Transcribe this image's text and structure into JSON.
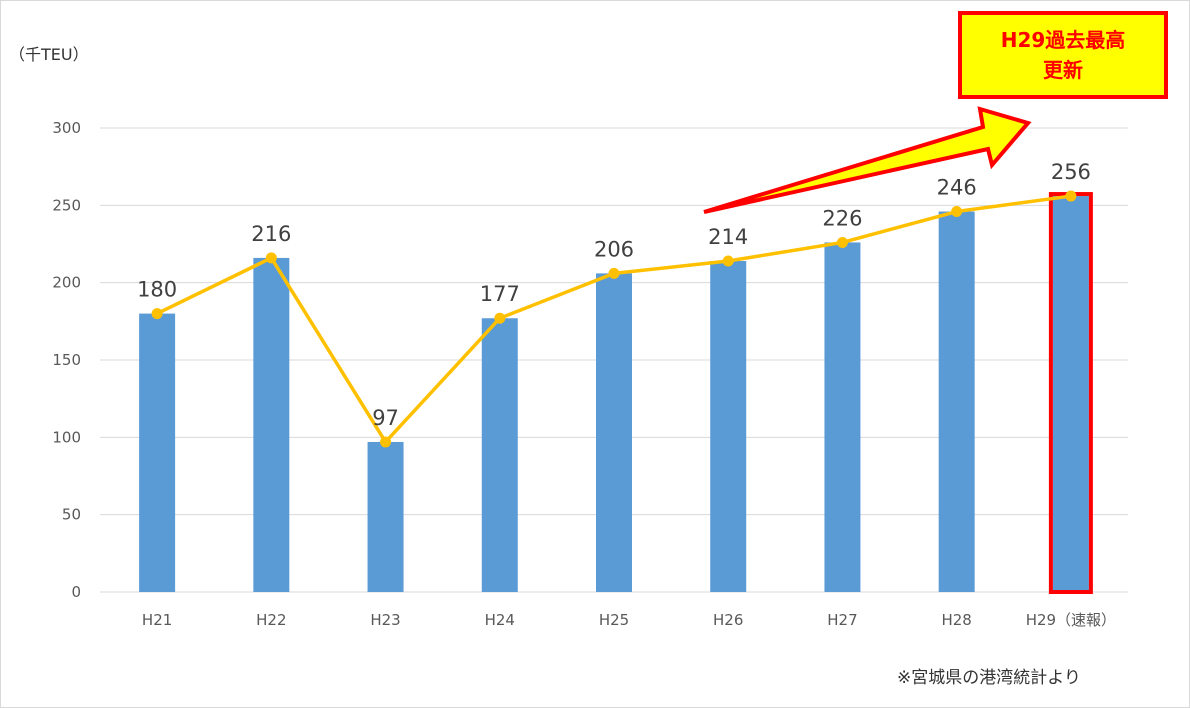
{
  "chart_data": {
    "type": "bar",
    "unit_label": "（千TEU）",
    "categories": [
      "H21",
      "H22",
      "H23",
      "H24",
      "H25",
      "H26",
      "H27",
      "H28",
      "H29（速報）"
    ],
    "series": [
      {
        "type": "bar",
        "values": [
          180,
          216,
          97,
          177,
          206,
          214,
          226,
          246,
          256
        ]
      },
      {
        "type": "line",
        "values": [
          180,
          216,
          97,
          177,
          206,
          214,
          226,
          246,
          256
        ]
      }
    ],
    "data_labels": [
      "180",
      "216",
      "97",
      "177",
      "206",
      "214",
      "226",
      "246",
      "256"
    ],
    "y_ticks": [
      "0",
      "50",
      "100",
      "150",
      "200",
      "250",
      "300"
    ],
    "ylim": [
      0,
      300
    ],
    "grid": true,
    "highlight_index": 8,
    "colors": {
      "bar": "#5b9bd5",
      "line": "#ffc000",
      "highlight_border": "#ff0000",
      "arrow_fill": "#ffff00",
      "arrow_stroke": "#ff0000",
      "grid": "#d9d9d9"
    }
  },
  "callout": {
    "line1": "H29過去最高",
    "line2": "更新"
  },
  "source_note": "※宮城県の港湾統計より"
}
